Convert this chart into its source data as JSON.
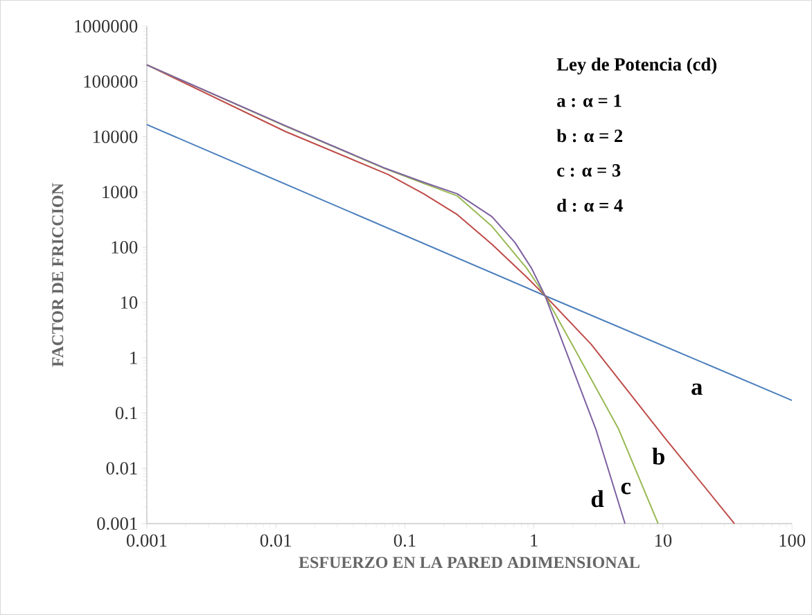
{
  "chart_data": {
    "type": "line",
    "xlabel": "ESFUERZO EN LA PARED ADIMENSIONAL",
    "ylabel": "FACTOR DE FRICCION",
    "log": "xy",
    "marker": "none",
    "line_style": "solid",
    "xlim": [
      0.001,
      100
    ],
    "ylim": [
      0.001,
      1000000
    ],
    "xticks": [
      0.001,
      0.01,
      0.1,
      1,
      10,
      100
    ],
    "yticks": [
      0.001,
      0.01,
      0.1,
      1,
      10,
      100,
      1000,
      10000,
      100000,
      1000000
    ],
    "series": [
      {
        "name": "a",
        "color": "#4a7ebb",
        "x": [
          0.001,
          1.22,
          100
        ],
        "values": [
          16600,
          13.3,
          0.17
        ]
      },
      {
        "name": "b",
        "color": "#be4b48",
        "x": [
          0.001,
          0.0119,
          0.074,
          0.14,
          0.255,
          0.473,
          0.877,
          1.22,
          2.77,
          10.4,
          35.8
        ],
        "values": [
          200000,
          12400,
          2080,
          927,
          390,
          113,
          29,
          13.3,
          1.77,
          0.035,
          0.001
        ]
      },
      {
        "name": "c",
        "color": "#98b954",
        "x": [
          0.001,
          0.0119,
          0.0687,
          0.14,
          0.255,
          0.473,
          0.877,
          1.22,
          2.01,
          4.54,
          9.18
        ],
        "values": [
          200000,
          15500,
          2700,
          1430,
          850,
          239,
          42,
          13.3,
          1.63,
          0.051,
          0.001
        ]
      },
      {
        "name": "d",
        "color": "#7d60a0",
        "x": [
          0.001,
          0.0119,
          0.0687,
          0.14,
          0.255,
          0.473,
          0.711,
          0.957,
          1.22,
          1.69,
          3.02,
          5.08
        ],
        "values": [
          200000,
          15800,
          2750,
          1500,
          927,
          358,
          123,
          42,
          13.3,
          1.77,
          0.051,
          0.001
        ]
      }
    ],
    "annotations": [
      "Ley de Potencia (cd)",
      "a : α = 1",
      "b : α = 2",
      "c : α = 3",
      "d : α = 4"
    ]
  }
}
